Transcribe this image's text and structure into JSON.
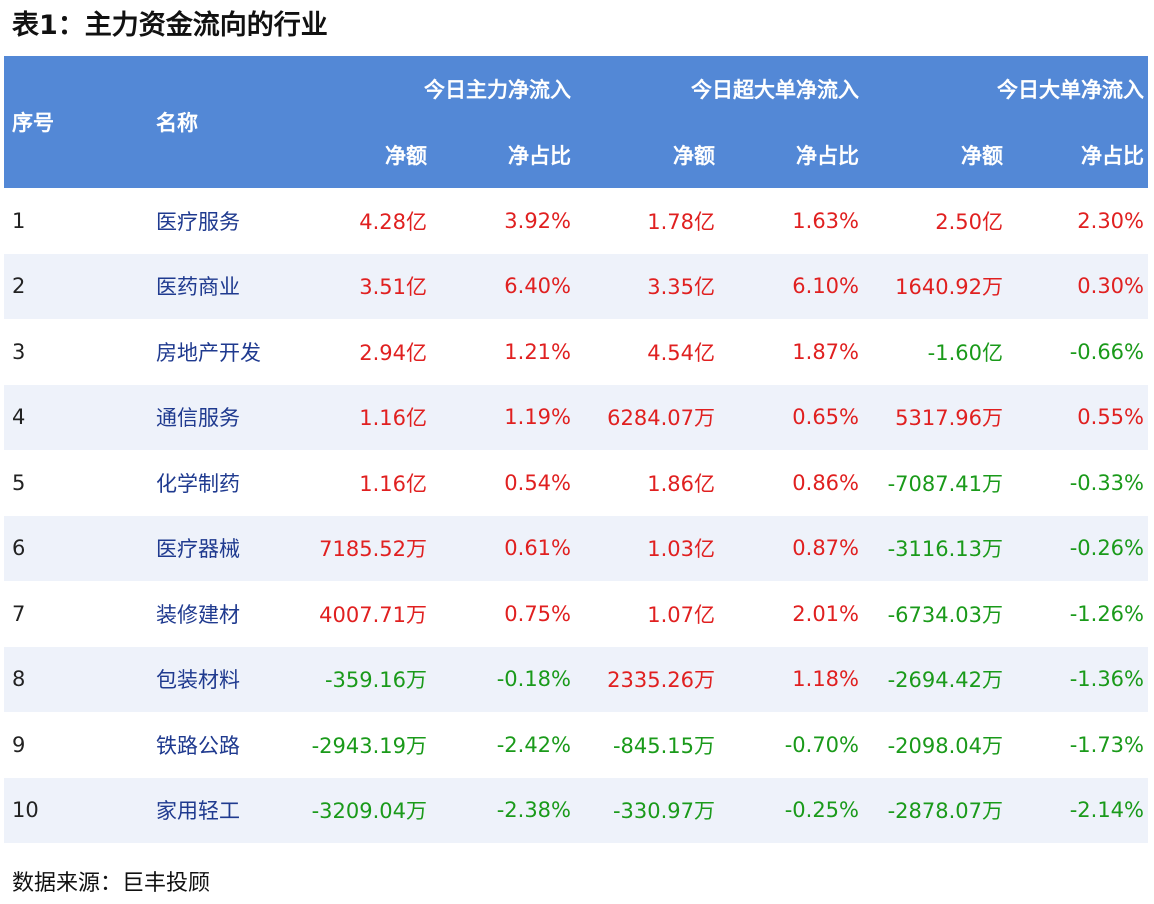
{
  "title": "表1：主力资金流向的行业",
  "headers": {
    "index": "序号",
    "name": "名称",
    "groups": [
      "今日主力净流入",
      "今日超大单净流入",
      "今日大单净流入"
    ],
    "sub": [
      "净额",
      "净占比",
      "净额",
      "净占比",
      "净额",
      "净占比"
    ]
  },
  "rows": [
    {
      "index": "1",
      "name": "医疗服务",
      "values": [
        "4.28亿",
        "3.92%",
        "1.78亿",
        "1.63%",
        "2.50亿",
        "2.30%"
      ],
      "signs": [
        "pos",
        "pos",
        "pos",
        "pos",
        "pos",
        "pos"
      ]
    },
    {
      "index": "2",
      "name": "医药商业",
      "values": [
        "3.51亿",
        "6.40%",
        "3.35亿",
        "6.10%",
        "1640.92万",
        "0.30%"
      ],
      "signs": [
        "pos",
        "pos",
        "pos",
        "pos",
        "pos",
        "pos"
      ]
    },
    {
      "index": "3",
      "name": "房地产开发",
      "values": [
        "2.94亿",
        "1.21%",
        "4.54亿",
        "1.87%",
        "-1.60亿",
        "-0.66%"
      ],
      "signs": [
        "pos",
        "pos",
        "pos",
        "pos",
        "neg",
        "neg"
      ]
    },
    {
      "index": "4",
      "name": "通信服务",
      "values": [
        "1.16亿",
        "1.19%",
        "6284.07万",
        "0.65%",
        "5317.96万",
        "0.55%"
      ],
      "signs": [
        "pos",
        "pos",
        "pos",
        "pos",
        "pos",
        "pos"
      ]
    },
    {
      "index": "5",
      "name": "化学制药",
      "values": [
        "1.16亿",
        "0.54%",
        "1.86亿",
        "0.86%",
        "-7087.41万",
        "-0.33%"
      ],
      "signs": [
        "pos",
        "pos",
        "pos",
        "pos",
        "neg",
        "neg"
      ]
    },
    {
      "index": "6",
      "name": "医疗器械",
      "values": [
        "7185.52万",
        "0.61%",
        "1.03亿",
        "0.87%",
        "-3116.13万",
        "-0.26%"
      ],
      "signs": [
        "pos",
        "pos",
        "pos",
        "pos",
        "neg",
        "neg"
      ]
    },
    {
      "index": "7",
      "name": "装修建材",
      "values": [
        "4007.71万",
        "0.75%",
        "1.07亿",
        "2.01%",
        "-6734.03万",
        "-1.26%"
      ],
      "signs": [
        "pos",
        "pos",
        "pos",
        "pos",
        "neg",
        "neg"
      ]
    },
    {
      "index": "8",
      "name": "包装材料",
      "values": [
        "-359.16万",
        "-0.18%",
        "2335.26万",
        "1.18%",
        "-2694.42万",
        "-1.36%"
      ],
      "signs": [
        "neg",
        "neg",
        "pos",
        "pos",
        "neg",
        "neg"
      ]
    },
    {
      "index": "9",
      "name": "铁路公路",
      "values": [
        "-2943.19万",
        "-2.42%",
        "-845.15万",
        "-0.70%",
        "-2098.04万",
        "-1.73%"
      ],
      "signs": [
        "neg",
        "neg",
        "neg",
        "neg",
        "neg",
        "neg"
      ]
    },
    {
      "index": "10",
      "name": "家用轻工",
      "values": [
        "-3209.04万",
        "-2.38%",
        "-330.97万",
        "-0.25%",
        "-2878.07万",
        "-2.14%"
      ],
      "signs": [
        "neg",
        "neg",
        "neg",
        "neg",
        "neg",
        "neg"
      ]
    }
  ],
  "source": "数据来源：巨丰投顾",
  "colors": {
    "header_bg": "#5388d6",
    "positive": "#e02020",
    "negative": "#1a9a1a",
    "name": "#1f3a8f",
    "stripe": "#eef2fa"
  }
}
